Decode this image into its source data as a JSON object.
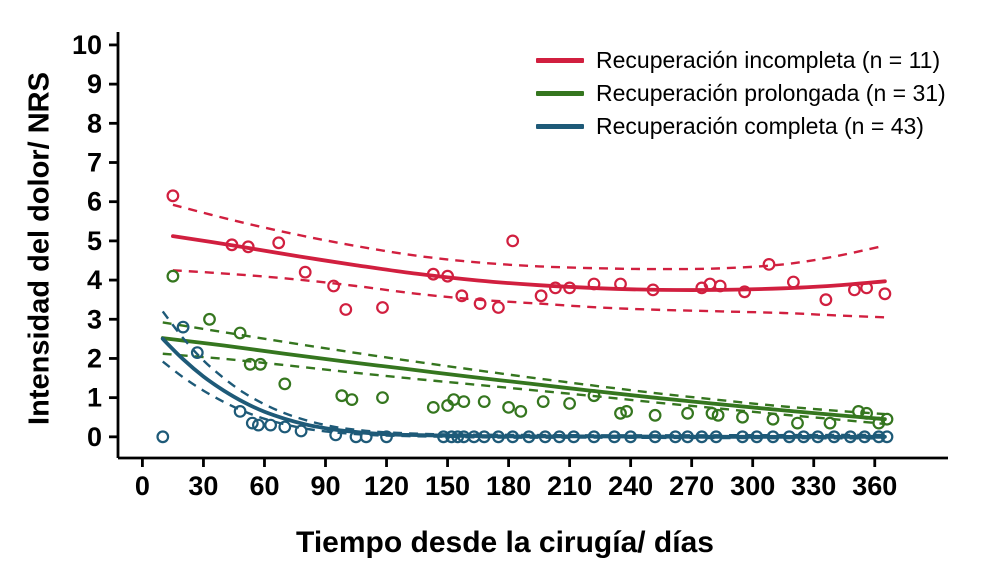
{
  "figure": {
    "background": "#ffffff",
    "axis_color": "#000000"
  },
  "chart_data": {
    "type": "scatter",
    "title": "",
    "xlabel": "Tiempo desde la cirugía/ días",
    "ylabel": "Intensidad del dolor/ NRS",
    "xlim": [
      -12,
      396
    ],
    "ylim": [
      -0.54,
      10.33
    ],
    "xticks": [
      0,
      30,
      60,
      90,
      120,
      150,
      180,
      210,
      240,
      270,
      300,
      330,
      360
    ],
    "yticks": [
      0,
      1,
      2,
      3,
      4,
      5,
      6,
      7,
      8,
      9,
      10
    ],
    "grid": false,
    "legend_position": "top-right",
    "line_styles": {
      "fit": "solid",
      "confidence_interval": "dashed"
    },
    "series": [
      {
        "name": "Recuperación incompleta (n = 11)",
        "color": "#d11f3f",
        "points": [
          [
            15,
            6.15
          ],
          [
            44,
            4.9
          ],
          [
            52,
            4.85
          ],
          [
            67,
            4.95
          ],
          [
            80,
            4.2
          ],
          [
            94,
            3.85
          ],
          [
            100,
            3.25
          ],
          [
            118,
            3.3
          ],
          [
            143,
            4.15
          ],
          [
            150,
            4.1
          ],
          [
            157,
            3.6
          ],
          [
            166,
            3.4
          ],
          [
            175,
            3.3
          ],
          [
            182,
            5.0
          ],
          [
            196,
            3.6
          ],
          [
            203,
            3.8
          ],
          [
            210,
            3.8
          ],
          [
            222,
            3.9
          ],
          [
            235,
            3.9
          ],
          [
            251,
            3.75
          ],
          [
            275,
            3.8
          ],
          [
            279,
            3.9
          ],
          [
            284,
            3.85
          ],
          [
            296,
            3.7
          ],
          [
            308,
            4.4
          ],
          [
            320,
            3.95
          ],
          [
            336,
            3.5
          ],
          [
            350,
            3.75
          ],
          [
            356,
            3.8
          ],
          [
            365,
            3.65
          ]
        ],
        "fit": [
          [
            15,
            5.12
          ],
          [
            45,
            4.88
          ],
          [
            75,
            4.62
          ],
          [
            105,
            4.38
          ],
          [
            135,
            4.16
          ],
          [
            165,
            3.99
          ],
          [
            195,
            3.87
          ],
          [
            225,
            3.79
          ],
          [
            255,
            3.75
          ],
          [
            285,
            3.75
          ],
          [
            315,
            3.79
          ],
          [
            340,
            3.86
          ],
          [
            365,
            3.97
          ]
        ],
        "ci_upper": [
          [
            15,
            5.92
          ],
          [
            45,
            5.52
          ],
          [
            75,
            5.17
          ],
          [
            105,
            4.87
          ],
          [
            135,
            4.62
          ],
          [
            165,
            4.45
          ],
          [
            195,
            4.35
          ],
          [
            225,
            4.3
          ],
          [
            255,
            4.28
          ],
          [
            285,
            4.3
          ],
          [
            315,
            4.4
          ],
          [
            340,
            4.6
          ],
          [
            365,
            4.88
          ]
        ],
        "ci_lower": [
          [
            15,
            4.25
          ],
          [
            45,
            4.15
          ],
          [
            75,
            4.02
          ],
          [
            105,
            3.85
          ],
          [
            135,
            3.65
          ],
          [
            165,
            3.5
          ],
          [
            195,
            3.4
          ],
          [
            225,
            3.3
          ],
          [
            255,
            3.24
          ],
          [
            285,
            3.2
          ],
          [
            315,
            3.16
          ],
          [
            340,
            3.1
          ],
          [
            365,
            3.05
          ]
        ]
      },
      {
        "name": "Recuperación prolongada (n = 31)",
        "color": "#35761f",
        "points": [
          [
            15,
            4.1
          ],
          [
            33,
            3.0
          ],
          [
            48,
            2.65
          ],
          [
            53,
            1.85
          ],
          [
            58,
            1.85
          ],
          [
            70,
            1.35
          ],
          [
            98,
            1.05
          ],
          [
            103,
            0.95
          ],
          [
            118,
            1.0
          ],
          [
            143,
            0.75
          ],
          [
            150,
            0.8
          ],
          [
            153,
            0.95
          ],
          [
            158,
            0.9
          ],
          [
            168,
            0.9
          ],
          [
            180,
            0.75
          ],
          [
            186,
            0.65
          ],
          [
            197,
            0.9
          ],
          [
            210,
            0.85
          ],
          [
            222,
            1.05
          ],
          [
            235,
            0.6
          ],
          [
            238,
            0.65
          ],
          [
            252,
            0.55
          ],
          [
            268,
            0.6
          ],
          [
            280,
            0.6
          ],
          [
            283,
            0.55
          ],
          [
            295,
            0.5
          ],
          [
            310,
            0.45
          ],
          [
            322,
            0.35
          ],
          [
            338,
            0.35
          ],
          [
            352,
            0.65
          ],
          [
            356,
            0.6
          ],
          [
            362,
            0.35
          ],
          [
            366,
            0.45
          ]
        ],
        "fit": [
          [
            10,
            2.52
          ],
          [
            40,
            2.33
          ],
          [
            70,
            2.12
          ],
          [
            100,
            1.92
          ],
          [
            130,
            1.73
          ],
          [
            160,
            1.54
          ],
          [
            190,
            1.36
          ],
          [
            220,
            1.18
          ],
          [
            250,
            1.01
          ],
          [
            280,
            0.85
          ],
          [
            310,
            0.7
          ],
          [
            340,
            0.56
          ],
          [
            365,
            0.45
          ]
        ],
        "ci_upper": [
          [
            10,
            2.92
          ],
          [
            40,
            2.67
          ],
          [
            70,
            2.42
          ],
          [
            100,
            2.18
          ],
          [
            130,
            1.95
          ],
          [
            160,
            1.73
          ],
          [
            190,
            1.52
          ],
          [
            220,
            1.32
          ],
          [
            250,
            1.13
          ],
          [
            280,
            0.96
          ],
          [
            310,
            0.8
          ],
          [
            340,
            0.67
          ],
          [
            365,
            0.58
          ]
        ],
        "ci_lower": [
          [
            10,
            2.12
          ],
          [
            40,
            1.99
          ],
          [
            70,
            1.83
          ],
          [
            100,
            1.66
          ],
          [
            130,
            1.5
          ],
          [
            160,
            1.35
          ],
          [
            190,
            1.2
          ],
          [
            220,
            1.05
          ],
          [
            250,
            0.89
          ],
          [
            280,
            0.74
          ],
          [
            310,
            0.59
          ],
          [
            340,
            0.45
          ],
          [
            365,
            0.33
          ]
        ]
      },
      {
        "name": "Recuperación completa (n = 43)",
        "color": "#1e5a78",
        "points": [
          [
            10,
            0
          ],
          [
            20,
            2.8
          ],
          [
            27,
            2.15
          ],
          [
            48,
            0.65
          ],
          [
            54,
            0.35
          ],
          [
            57,
            0.3
          ],
          [
            63,
            0.3
          ],
          [
            70,
            0.25
          ],
          [
            78,
            0.15
          ],
          [
            95,
            0.05
          ],
          [
            105,
            0
          ],
          [
            110,
            0
          ],
          [
            120,
            0
          ],
          [
            148,
            0
          ],
          [
            152,
            0
          ],
          [
            155,
            0
          ],
          [
            158,
            0
          ],
          [
            163,
            0
          ],
          [
            168,
            0
          ],
          [
            175,
            0
          ],
          [
            182,
            0
          ],
          [
            190,
            0
          ],
          [
            198,
            0
          ],
          [
            205,
            0
          ],
          [
            212,
            0
          ],
          [
            222,
            0
          ],
          [
            232,
            0
          ],
          [
            240,
            0
          ],
          [
            252,
            0
          ],
          [
            262,
            0
          ],
          [
            268,
            0
          ],
          [
            275,
            0
          ],
          [
            282,
            0
          ],
          [
            295,
            0
          ],
          [
            302,
            0
          ],
          [
            310,
            0
          ],
          [
            318,
            0
          ],
          [
            325,
            0
          ],
          [
            332,
            0
          ],
          [
            340,
            0
          ],
          [
            348,
            0
          ],
          [
            355,
            0
          ],
          [
            362,
            0
          ],
          [
            366,
            0
          ]
        ],
        "fit": [
          [
            10,
            2.5
          ],
          [
            20,
            1.98
          ],
          [
            30,
            1.54
          ],
          [
            40,
            1.18
          ],
          [
            50,
            0.88
          ],
          [
            60,
            0.64
          ],
          [
            70,
            0.46
          ],
          [
            80,
            0.32
          ],
          [
            90,
            0.22
          ],
          [
            100,
            0.15
          ],
          [
            115,
            0.08
          ],
          [
            130,
            0.05
          ],
          [
            150,
            0.03
          ],
          [
            180,
            0.01
          ],
          [
            220,
            0.01
          ],
          [
            280,
            0.0
          ],
          [
            365,
            0.0
          ]
        ],
        "ci_upper": [
          [
            10,
            3.2
          ],
          [
            20,
            2.52
          ],
          [
            30,
            1.95
          ],
          [
            40,
            1.5
          ],
          [
            50,
            1.12
          ],
          [
            60,
            0.83
          ],
          [
            70,
            0.6
          ],
          [
            80,
            0.43
          ],
          [
            90,
            0.3
          ],
          [
            100,
            0.21
          ],
          [
            115,
            0.13
          ],
          [
            130,
            0.09
          ],
          [
            150,
            0.06
          ],
          [
            180,
            0.05
          ],
          [
            220,
            0.04
          ],
          [
            280,
            0.04
          ],
          [
            365,
            0.05
          ]
        ],
        "ci_lower": [
          [
            10,
            1.92
          ],
          [
            20,
            1.52
          ],
          [
            30,
            1.18
          ],
          [
            40,
            0.89
          ],
          [
            50,
            0.65
          ],
          [
            60,
            0.46
          ],
          [
            70,
            0.32
          ],
          [
            80,
            0.21
          ],
          [
            90,
            0.14
          ],
          [
            100,
            0.09
          ],
          [
            115,
            0.04
          ],
          [
            130,
            0.02
          ],
          [
            150,
            0.0
          ],
          [
            180,
            -0.02
          ],
          [
            220,
            -0.02
          ],
          [
            280,
            -0.03
          ],
          [
            365,
            -0.04
          ]
        ]
      }
    ]
  }
}
